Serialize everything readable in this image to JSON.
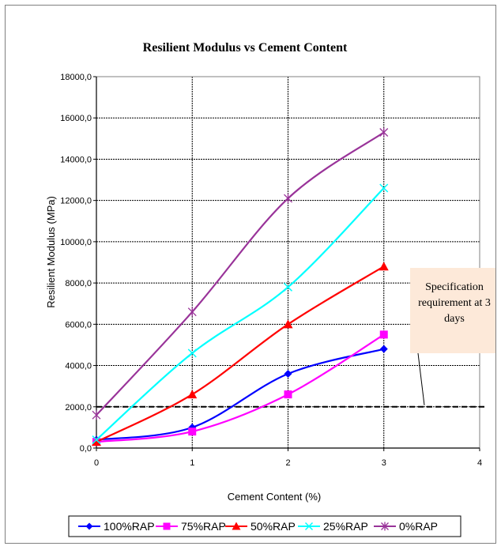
{
  "chart_data": {
    "type": "line",
    "title": "Resilient Modulus  vs Cement Content",
    "xlabel": "Cement Content (%)",
    "ylabel": "Resilient Modulus (MPa)",
    "xlim": [
      0,
      4
    ],
    "ylim": [
      0,
      18000
    ],
    "x_ticks": [
      "0",
      "1",
      "2",
      "3",
      "4"
    ],
    "y_ticks": [
      "0,0",
      "2000,0",
      "4000,0",
      "6000,0",
      "8000,0",
      "10000,0",
      "12000,0",
      "14000,0",
      "16000,0",
      "18000,0"
    ],
    "grid": true,
    "legend_position": "bottom",
    "x": [
      0,
      1,
      2,
      3
    ],
    "series": [
      {
        "name": "100%RAP",
        "values": [
          400,
          1000,
          3600,
          4800
        ],
        "color": "#0000ff",
        "marker": "diamond"
      },
      {
        "name": "75%RAP",
        "values": [
          300,
          800,
          2600,
          5500
        ],
        "color": "#ff00ff",
        "marker": "square"
      },
      {
        "name": "50%RAP",
        "values": [
          300,
          2600,
          6000,
          8800
        ],
        "color": "#ff0000",
        "marker": "triangle"
      },
      {
        "name": "25%RAP",
        "values": [
          400,
          4600,
          7800,
          12600
        ],
        "color": "#00ffff",
        "marker": "x"
      },
      {
        "name": "0%RAP",
        "values": [
          1600,
          6600,
          12100,
          15300
        ],
        "color": "#993399",
        "marker": "star"
      }
    ],
    "reference_line": {
      "value": 2000
    },
    "annotation": {
      "lines": [
        "Specification",
        "requirement at 3",
        "days"
      ],
      "background": "#fde9d9"
    }
  }
}
